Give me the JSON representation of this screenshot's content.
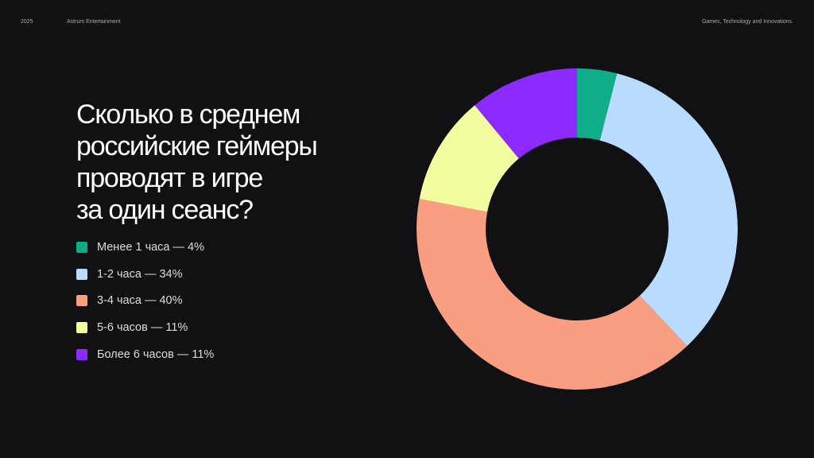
{
  "header": {
    "year": "2025",
    "company": "Astrum Entertainment",
    "tagline": "Games, Technology and Innovations."
  },
  "chart_data": {
    "type": "donut",
    "title": [
      "Сколько в среднем",
      "российские геймеры",
      "проводят в игре",
      "за один сеанс?"
    ],
    "categories": [
      "Менее 1 часа — 4%",
      "1-2 часа — 34%",
      "3-4 часа — 40%",
      "5-6 часов — 11%",
      "Более 6 часов — 11%"
    ],
    "values": [
      4,
      34,
      40,
      11,
      11
    ],
    "colors": [
      "#10ad89",
      "#b9dcfe",
      "#f99e81",
      "#f3fc9f",
      "#8b2bff"
    ]
  }
}
